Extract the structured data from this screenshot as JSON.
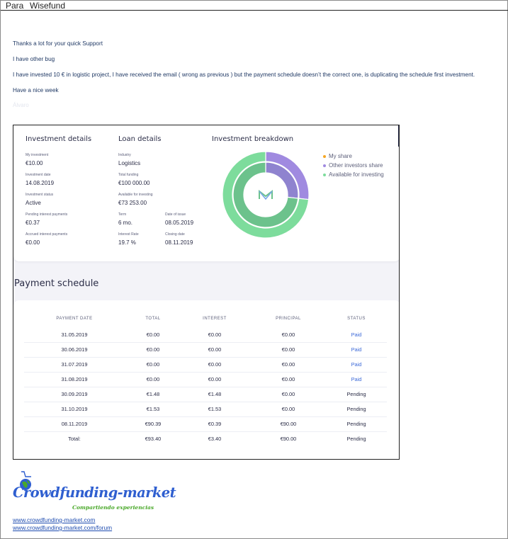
{
  "header": {
    "to_label": "Para",
    "recipient": "Wisefund"
  },
  "email": {
    "lines": [
      "Thanks a lot for your quick Support",
      "I have other bug",
      "I have invested 10 € in logistic project, I have received the email ( wrong as previous ) but the payment schedule doesn’t the correct one, is duplicating the schedule first investment.",
      "Have a nice week"
    ],
    "faded_text": "Álvaro"
  },
  "investment": {
    "title": "Investment details",
    "my_investment_label": "My investment",
    "my_investment": "€10.00",
    "investment_date_label": "Investment date",
    "investment_date": "14.08.2019",
    "investment_status_label": "Investment status",
    "investment_status": "Active",
    "pending_interest_label": "Pending interest payments",
    "pending_interest": "€0.37",
    "accrued_interest_label": "Accrued interest payments",
    "accrued_interest": "€0.00"
  },
  "loan": {
    "title": "Loan details",
    "industry_label": "Industry",
    "industry": "Logistics",
    "total_funding_label": "Total funding",
    "total_funding": "€100 000.00",
    "available_label": "Available for investing",
    "available": "€73 253.00",
    "term_label": "Term",
    "term": "6 mo.",
    "date_of_issue_label": "Date of issue",
    "date_of_issue": "08.05.2019",
    "interest_rate_label": "Interest Rate",
    "interest_rate": "19.7 %",
    "closing_date_label": "Closing date",
    "closing_date": "08.11.2019"
  },
  "breakdown": {
    "title": "Investment breakdown",
    "legend": [
      {
        "label": "My share",
        "color": "#f5a623"
      },
      {
        "label": "Other investors share",
        "color": "#a08ae0"
      },
      {
        "label": "Available for investing",
        "color": "#7ddc9c"
      }
    ]
  },
  "chart_data": {
    "type": "pie",
    "title": "Investment breakdown",
    "series": [
      {
        "values": [
          0.0001,
          26.747,
          73.253
        ]
      },
      {
        "values": [
          0.0001,
          26.747,
          73.253
        ]
      }
    ],
    "categories": [
      "My share",
      "Other investors share",
      "Available for investing"
    ],
    "colors": [
      "#f5a623",
      "#a08ae0",
      "#7ddc9c"
    ],
    "inner_colors": [
      "#f5a623",
      "#8f83cf",
      "#6cc28c"
    ]
  },
  "schedule": {
    "title": "Payment schedule",
    "headers": [
      "PAYMENT DATE",
      "TOTAL",
      "INTEREST",
      "PRINCIPAL",
      "STATUS"
    ],
    "rows": [
      [
        "31.05.2019",
        "€0.00",
        "€0.00",
        "€0.00",
        "Paid"
      ],
      [
        "30.06.2019",
        "€0.00",
        "€0.00",
        "€0.00",
        "Paid"
      ],
      [
        "31.07.2019",
        "€0.00",
        "€0.00",
        "€0.00",
        "Paid"
      ],
      [
        "31.08.2019",
        "€0.00",
        "€0.00",
        "€0.00",
        "Paid"
      ],
      [
        "30.09.2019",
        "€1.48",
        "€1.48",
        "€0.00",
        "Pending"
      ],
      [
        "31.10.2019",
        "€1.53",
        "€1.53",
        "€0.00",
        "Pending"
      ],
      [
        "08.11.2019",
        "€90.39",
        "€0.39",
        "€90.00",
        "Pending"
      ]
    ],
    "total_row": [
      "Total:",
      "€93.40",
      "€3.40",
      "€90.00",
      "Pending"
    ]
  },
  "signature": {
    "logo_text": "Crowdfunding-market",
    "tagline": "Compartiendo experiencias",
    "links": [
      "www.crowdfunding-market.com",
      "www.crowdfunding-market.com/forum"
    ]
  },
  "colors": {
    "accent_link": "#3d6ad8",
    "email_text": "#1f3864",
    "brand_blue": "#2f5fd0",
    "brand_green": "#49a829"
  }
}
